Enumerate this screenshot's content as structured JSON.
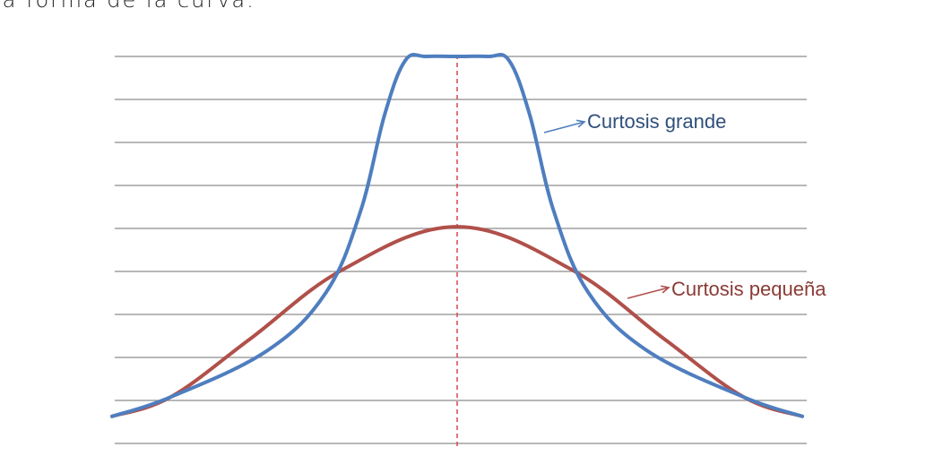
{
  "top_text": "la forma de la curva.",
  "chart_data": {
    "type": "line",
    "title": "",
    "xlabel": "",
    "ylabel": "",
    "grid": true,
    "grid_lines": 9,
    "center_line": "dashed",
    "colors": {
      "grid": "#8c8c8c",
      "center": "#d9534f"
    },
    "series": [
      {
        "name": "Curtosis grande",
        "color": "#4f7ebf",
        "annotation": "Curtosis grande",
        "points": [
          [
            -1.0,
            0.07
          ],
          [
            -0.83,
            0.12
          ],
          [
            -0.55,
            0.24
          ],
          [
            -0.38,
            0.39
          ],
          [
            -0.28,
            0.6
          ],
          [
            -0.21,
            0.85
          ],
          [
            -0.15,
            0.99
          ],
          [
            -0.09,
            1.0
          ],
          [
            0.0,
            1.0
          ],
          [
            0.09,
            1.0
          ],
          [
            0.15,
            0.99
          ],
          [
            0.21,
            0.85
          ],
          [
            0.28,
            0.6
          ],
          [
            0.38,
            0.39
          ],
          [
            0.55,
            0.24
          ],
          [
            0.83,
            0.12
          ],
          [
            1.0,
            0.07
          ]
        ]
      },
      {
        "name": "Curtosis pequeña",
        "color": "#b0504a",
        "annotation": "Curtosis pequeña",
        "points": [
          [
            -1.0,
            0.07
          ],
          [
            -0.83,
            0.12
          ],
          [
            -0.6,
            0.27
          ],
          [
            -0.33,
            0.45
          ],
          [
            0.0,
            0.56
          ],
          [
            0.33,
            0.45
          ],
          [
            0.6,
            0.27
          ],
          [
            0.83,
            0.12
          ],
          [
            1.0,
            0.07
          ]
        ]
      }
    ]
  }
}
